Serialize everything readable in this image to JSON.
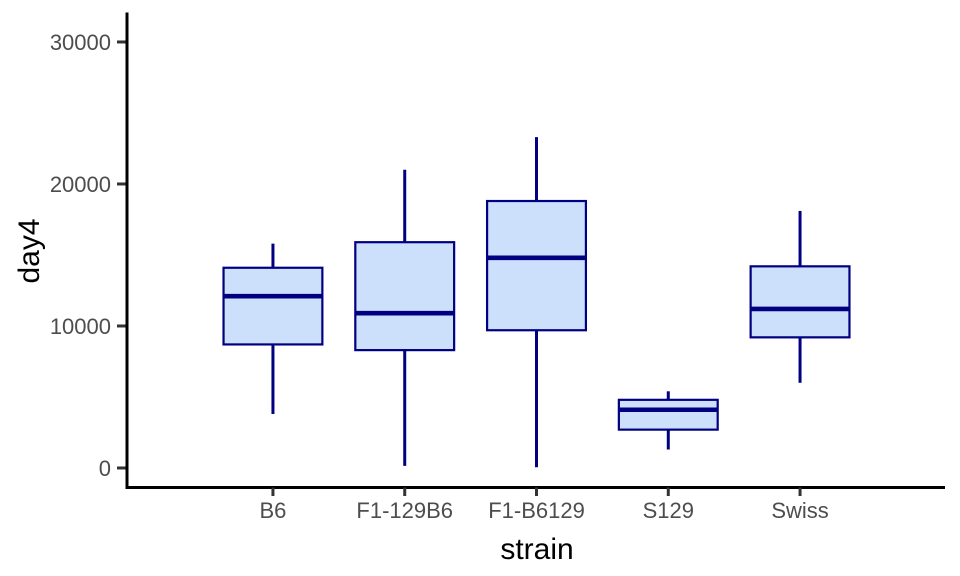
{
  "chart_data": {
    "type": "boxplot",
    "title": "",
    "xlabel": "strain",
    "ylabel": "day4",
    "categories": [
      "B6",
      "F1-129B6",
      "F1-B6129",
      "S129",
      "Swiss"
    ],
    "series": [
      {
        "category": "B6",
        "min": 3800,
        "q1": 8700,
        "median": 12100,
        "q3": 14100,
        "max": 15800
      },
      {
        "category": "F1-129B6",
        "min": 150,
        "q1": 8300,
        "median": 10900,
        "q3": 15900,
        "max": 21000
      },
      {
        "category": "F1-B6129",
        "min": 50,
        "q1": 9700,
        "median": 14800,
        "q3": 18800,
        "max": 23300
      },
      {
        "category": "S129",
        "min": 1300,
        "q1": 2700,
        "median": 4100,
        "q3": 4800,
        "max": 5400
      },
      {
        "category": "Swiss",
        "min": 6000,
        "q1": 9200,
        "median": 11200,
        "q3": 14200,
        "max": 18100
      }
    ],
    "y_ticks": [
      0,
      10000,
      20000,
      30000
    ],
    "y_tick_labels": [
      "0",
      "10000",
      "20000",
      "30000"
    ],
    "ylim": [
      -1480,
      31970
    ],
    "grid": false,
    "legend": false,
    "colors": {
      "box_fill": "#cce0fb",
      "box_stroke": "#000080",
      "median": "#000080",
      "whisker": "#000080",
      "axis_line": "#000000",
      "tick_mark": "#333333",
      "tick_label": "#4d4d4d",
      "axis_title": "#000000",
      "background": "#ffffff"
    }
  }
}
